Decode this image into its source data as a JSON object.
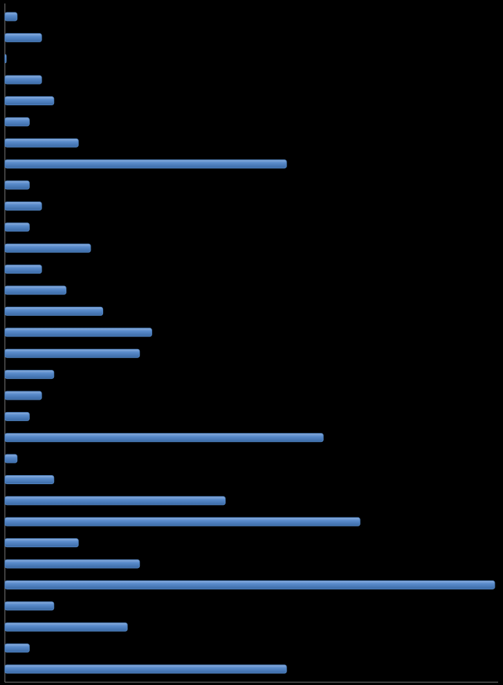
{
  "chart_data": {
    "type": "bar",
    "orientation": "horizontal",
    "categories": [
      null,
      null,
      null,
      null,
      null,
      null,
      null,
      null,
      null,
      null,
      null,
      null,
      null,
      null,
      null,
      null,
      null,
      null,
      null,
      null,
      null,
      null,
      null,
      null,
      null,
      null,
      null,
      null,
      null,
      null,
      null,
      null
    ],
    "values": [
      1,
      3,
      0,
      3,
      4,
      2,
      6,
      23,
      2,
      3,
      2,
      7,
      3,
      5,
      8,
      12,
      11,
      4,
      3,
      2,
      26,
      1,
      4,
      18,
      29,
      6,
      11,
      40,
      4,
      10,
      2,
      23
    ],
    "color": "#4f81bd",
    "xlim": [
      0,
      40
    ]
  }
}
